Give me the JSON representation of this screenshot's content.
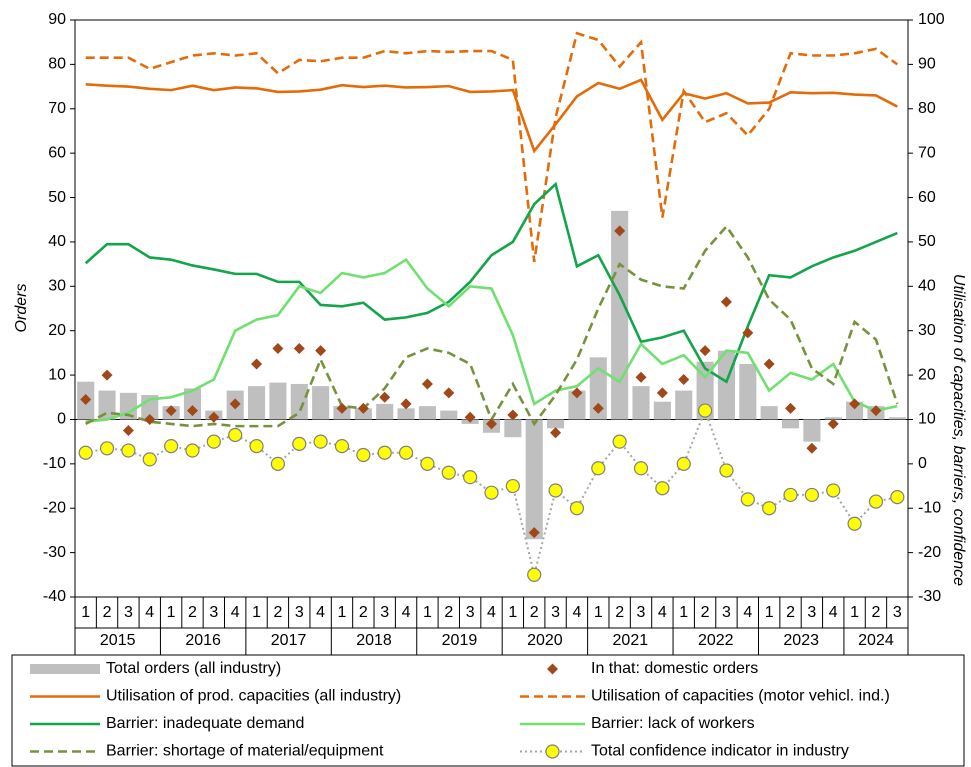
{
  "chart_data": {
    "type": "combo",
    "y_label": "Orders",
    "y2_label": "Utilisation of capacities, barriers, confidence",
    "categories": [
      "1",
      "2",
      "3",
      "4",
      "1",
      "2",
      "3",
      "4",
      "1",
      "2",
      "3",
      "4",
      "1",
      "2",
      "3",
      "4",
      "1",
      "2",
      "3",
      "4",
      "1",
      "2",
      "3",
      "4",
      "1",
      "2",
      "3",
      "4",
      "1",
      "2",
      "3",
      "4",
      "1",
      "2",
      "3",
      "4",
      "1",
      "2",
      "3"
    ],
    "years": [
      "2015",
      "2016",
      "2017",
      "2018",
      "2019",
      "2020",
      "2021",
      "2022",
      "2023",
      "2024"
    ],
    "ylim": [
      -40,
      90
    ],
    "yticks": [
      -40,
      -30,
      -20,
      -10,
      0,
      10,
      20,
      30,
      40,
      50,
      60,
      70,
      80,
      90
    ],
    "y2lim": [
      -30,
      100
    ],
    "y2ticks": [
      -30,
      -20,
      -10,
      0,
      10,
      20,
      30,
      40,
      50,
      60,
      70,
      80,
      90,
      100
    ],
    "grid": false,
    "series": [
      {
        "name": "Total orders (all industry)",
        "type": "bar",
        "color": "#bfbfbf",
        "values": [
          8.5,
          6.5,
          6,
          5.5,
          3,
          7,
          2,
          6.5,
          7.5,
          8.3,
          8,
          7.5,
          3,
          2.5,
          3.5,
          2.5,
          3,
          2,
          -1,
          -3,
          -4,
          -27,
          -2,
          6.5,
          14,
          47,
          7.5,
          4,
          6.5,
          13,
          15.5,
          12.5,
          3,
          -2,
          -5,
          0.5,
          4,
          3,
          0.5
        ]
      },
      {
        "name": "In that: domestic orders",
        "type": "scatter",
        "marker": "diamond",
        "color": "#a0481a",
        "values": [
          4.5,
          10,
          -2.5,
          0,
          2,
          2,
          0.5,
          3.5,
          12.5,
          16,
          16,
          15.5,
          2.5,
          2.5,
          5,
          3.5,
          8,
          6,
          0.5,
          -1,
          1,
          -25.5,
          -3,
          6,
          2.5,
          42.5,
          9.5,
          6,
          9,
          15.5,
          26.5,
          19.5,
          12.5,
          2.5,
          -6.5,
          -1,
          3.5,
          2,
          null
        ]
      },
      {
        "name": "Utilisation of prod. capacities (all industry)",
        "type": "line",
        "dash": "solid",
        "axis": "y2",
        "color": "#e36c0a",
        "values": [
          85.5,
          85.2,
          85,
          84.5,
          84.2,
          85.2,
          84.2,
          84.8,
          84.6,
          83.8,
          83.9,
          84.3,
          85.3,
          84.9,
          85.2,
          84.8,
          84.9,
          85.1,
          83.8,
          83.9,
          84.2,
          70.5,
          76.5,
          82.8,
          85.8,
          84.5,
          86.5,
          77.5,
          83.5,
          82.3,
          83.5,
          81.2,
          81.4,
          83.7,
          83.5,
          83.6,
          83.2,
          83,
          80.5
        ]
      },
      {
        "name": "Utilisation of capacities (motor vehicl. ind.)",
        "type": "line",
        "dash": "dashed",
        "axis": "y2",
        "color": "#e36c0a",
        "values": [
          91.5,
          91.5,
          91.5,
          89,
          90.5,
          92,
          92.5,
          92,
          92.5,
          88,
          91,
          90.7,
          91.5,
          91.5,
          93,
          92.5,
          93,
          92.8,
          93,
          93,
          91,
          45.5,
          78,
          97,
          95.5,
          89.5,
          95,
          55.5,
          84,
          77,
          79,
          74,
          80,
          92.5,
          92,
          92,
          92.5,
          93.5,
          90
        ]
      },
      {
        "name": "Barrier: inadequate demand",
        "type": "line",
        "dash": "solid",
        "axis": "y2",
        "color": "#12a54a",
        "values": [
          45.2,
          49.5,
          49.5,
          46.5,
          46,
          44.7,
          43.8,
          42.8,
          42.8,
          41,
          41,
          35.8,
          35.5,
          36.3,
          32.5,
          33,
          34,
          36.5,
          41,
          47,
          50,
          58.5,
          63,
          44.5,
          47,
          38,
          27.5,
          28.5,
          30,
          21.5,
          18.5,
          31,
          42.5,
          42,
          44.5,
          46.5,
          48,
          50,
          52
        ]
      },
      {
        "name": "Barrier: lack of workers",
        "type": "line",
        "dash": "solid",
        "axis": "y2",
        "color": "#70e070",
        "values": [
          9.5,
          10,
          11.5,
          14.5,
          15,
          16.5,
          19,
          30,
          32.5,
          33.5,
          40,
          38.5,
          43,
          42,
          43,
          46,
          39.5,
          35.5,
          40,
          39.5,
          29,
          13.5,
          16.5,
          17.5,
          21.5,
          18.5,
          27,
          22.5,
          24.5,
          19.5,
          25.5,
          25,
          16.5,
          20.5,
          19,
          22.5,
          14,
          12,
          13
        ]
      },
      {
        "name": "Barrier: shortage of material/equipment",
        "type": "line",
        "dash": "dashed",
        "axis": "y2",
        "color": "#76933c",
        "values": [
          9,
          11.5,
          11,
          9.5,
          9,
          8.5,
          9,
          8.5,
          8.5,
          8.5,
          11.5,
          23.5,
          13,
          12.5,
          17,
          24,
          26,
          25,
          22.5,
          10,
          18,
          9,
          15.5,
          23.5,
          35,
          45,
          41.5,
          40,
          39.5,
          48,
          53.5,
          46.5,
          37,
          32.5,
          21.5,
          18,
          32,
          28,
          13.5
        ]
      },
      {
        "name": "Total confidence indicator in industry",
        "type": "line",
        "dash": "dotted",
        "marker": "circle",
        "axis": "y2",
        "color": "#a6a6a6",
        "values": [
          2.5,
          3.5,
          3,
          1,
          4,
          3,
          5,
          6.5,
          4,
          0,
          4.5,
          5,
          4,
          2,
          2.5,
          2.5,
          0,
          -2,
          -3,
          -6.5,
          -5,
          -25,
          -6,
          -10,
          -1,
          5,
          -1,
          -5.5,
          0,
          12,
          -1.5,
          -8,
          -10,
          -7,
          -7,
          -6,
          -13.5,
          -8.5,
          -7.5
        ]
      }
    ]
  }
}
